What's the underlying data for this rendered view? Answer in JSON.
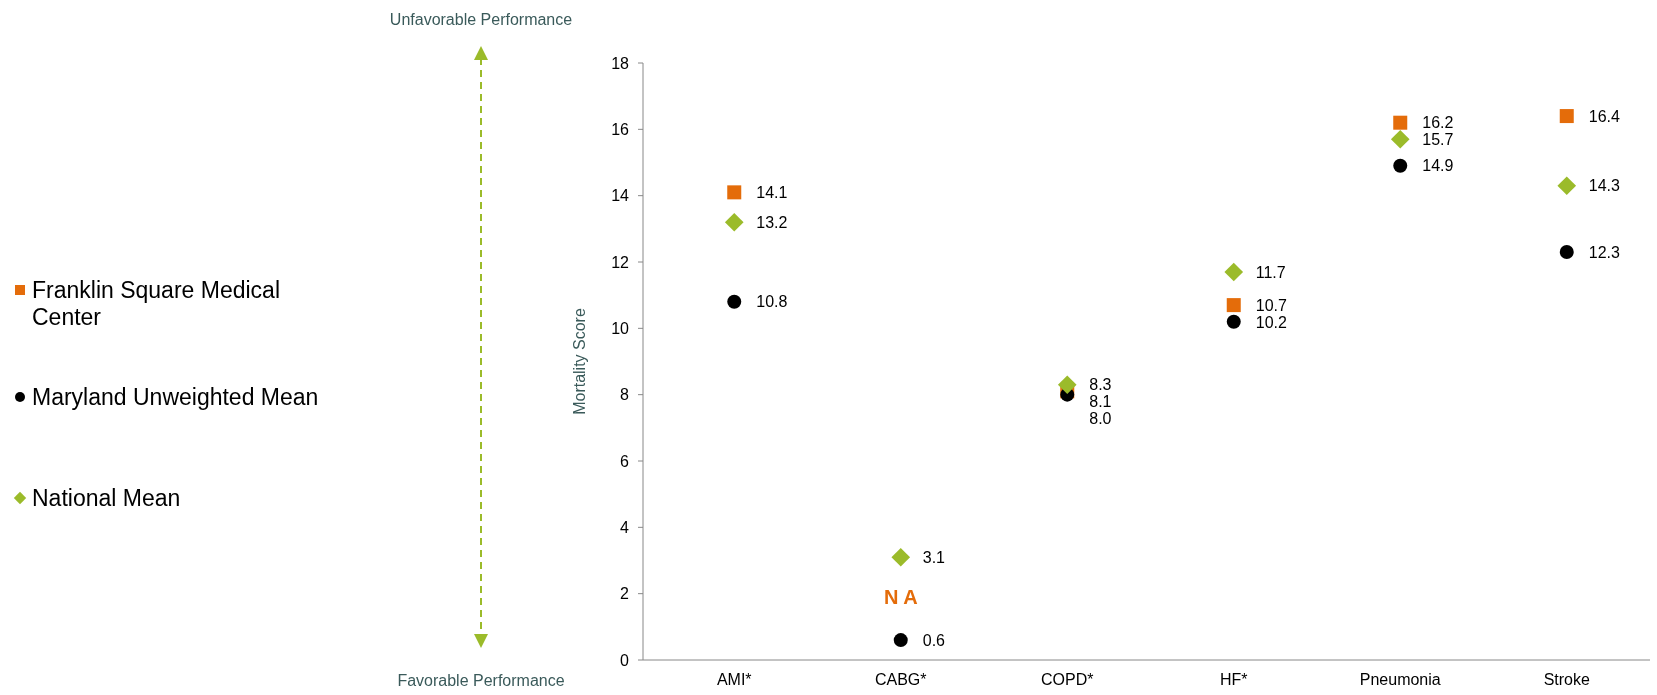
{
  "chart_data": {
    "type": "scatter",
    "ylabel": "Mortality Score",
    "categories": [
      "AMI*",
      "CABG*",
      "COPD*",
      "HF*",
      "Pneumonia",
      "Stroke"
    ],
    "ylim": [
      0,
      18
    ],
    "yticks": [
      0,
      2,
      4,
      6,
      8,
      10,
      12,
      14,
      16,
      18
    ],
    "legend": "left",
    "series": [
      {
        "name": "Franklin Square Medical Center",
        "color": "#e46c0a",
        "marker": "square",
        "values": [
          14.1,
          null,
          8.1,
          10.7,
          16.2,
          16.4
        ],
        "value_labels": [
          "14.1",
          null,
          "8.1",
          "10.7",
          "16.2",
          "16.4"
        ]
      },
      {
        "name": "Maryland Unweighted Mean",
        "color": "#000000",
        "marker": "circle",
        "values": [
          10.8,
          0.6,
          8.0,
          10.2,
          14.9,
          12.3
        ],
        "value_labels": [
          "10.8",
          "0.6",
          "8.0",
          "10.2",
          "14.9",
          "12.3"
        ]
      },
      {
        "name": "National Mean",
        "color": "#9bbb2a",
        "marker": "diamond",
        "values": [
          13.2,
          3.1,
          8.3,
          11.7,
          15.7,
          14.3
        ],
        "value_labels": [
          "13.2",
          "3.1",
          "8.3",
          "11.7",
          "15.7",
          "14.3"
        ]
      }
    ],
    "annotations": [
      "Unfavorable Performance",
      "Favorable Performance",
      "N A"
    ]
  }
}
